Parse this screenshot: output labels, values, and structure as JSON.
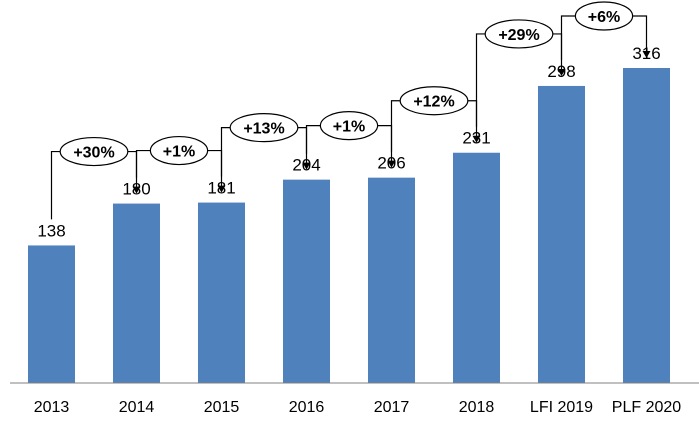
{
  "chart_data": {
    "type": "bar",
    "categories": [
      "2013",
      "2014",
      "2015",
      "2016",
      "2017",
      "2018",
      "LFI 2019",
      "PLF 2020"
    ],
    "values": [
      138,
      180,
      181,
      204,
      206,
      231,
      298,
      316
    ],
    "changes": [
      "+30%",
      "+1%",
      "+13%",
      "+1%",
      "+12%",
      "+29%",
      "+6%"
    ],
    "title": "",
    "xlabel": "",
    "ylabel": "",
    "ylim": [
      0,
      316
    ],
    "grid": false,
    "legend": "none",
    "bar_color": "#4f81bd"
  }
}
